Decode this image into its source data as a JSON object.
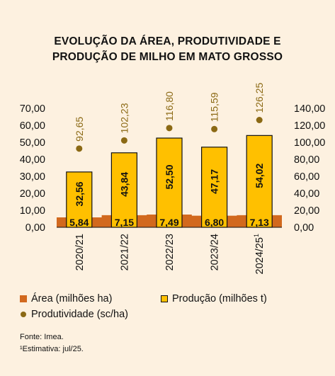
{
  "chart_data": {
    "type": "bar",
    "title": [
      "EVOLUÇÃO DA ÁREA, PRODUTIVIDADE E",
      "PRODUÇÃO DE MILHO EM MATO GROSSO"
    ],
    "categories": [
      "2020/21",
      "2021/22",
      "2022/23",
      "2023/24",
      "2024/25"
    ],
    "last_category_superscript": "1",
    "y_left": {
      "ylim": [
        0,
        70
      ],
      "ticks": [
        "0,00",
        "10,00",
        "20,00",
        "30,00",
        "40,00",
        "50,00",
        "60,00",
        "70,00"
      ]
    },
    "y_right": {
      "ylim": [
        0,
        140
      ],
      "ticks": [
        "0,00",
        "20,00",
        "40,00",
        "60,00",
        "80,00",
        "100,00",
        "120,00",
        "140,00"
      ]
    },
    "series": [
      {
        "name": "Área (milhões ha)",
        "type": "area",
        "axis": "left",
        "values": [
          5.84,
          7.15,
          7.49,
          6.8,
          7.13
        ],
        "labels": [
          "5,84",
          "7,15",
          "7,49",
          "6,80",
          "7,13"
        ]
      },
      {
        "name": "Produção (milhões t)",
        "type": "bar",
        "axis": "left",
        "values": [
          32.56,
          43.84,
          52.5,
          47.17,
          54.02
        ],
        "labels": [
          "32,56",
          "43,84",
          "52,50",
          "47,17",
          "54,02"
        ]
      },
      {
        "name": "Produtividade (sc/ha)",
        "type": "scatter",
        "axis": "right",
        "values": [
          92.65,
          102.23,
          116.8,
          115.59,
          126.25
        ],
        "labels": [
          "92,65",
          "102,23",
          "116,80",
          "115,59",
          "126,25"
        ]
      }
    ],
    "grid": false,
    "legend_position": "bottom"
  },
  "colors": {
    "area": "#d2691e",
    "bar": "#ffc000",
    "dot": "#8b6914",
    "background": "#fdf1e0"
  },
  "notes": {
    "source": "Fonte: Imea.",
    "estimate": "¹Estimativa: jul/25."
  }
}
